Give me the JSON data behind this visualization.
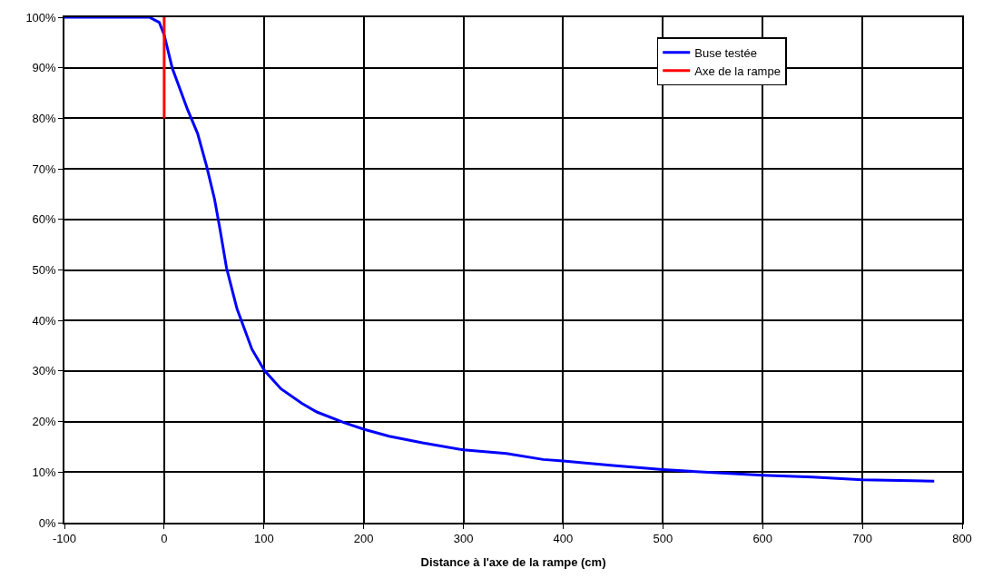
{
  "chart_data": {
    "type": "line",
    "xlabel": "Distance à l'axe de la rampe (cm)",
    "xlim": [
      -100,
      800
    ],
    "xticks": [
      -100,
      0,
      100,
      200,
      300,
      400,
      500,
      600,
      700,
      800
    ],
    "ylim": [
      0,
      100
    ],
    "yticks": [
      {
        "value": 0,
        "label": "0%"
      },
      {
        "value": 10,
        "label": "10%"
      },
      {
        "value": 20,
        "label": "20%"
      },
      {
        "value": 30,
        "label": "30%"
      },
      {
        "value": 40,
        "label": "40%"
      },
      {
        "value": 50,
        "label": "50%"
      },
      {
        "value": 60,
        "label": "60%"
      },
      {
        "value": 70,
        "label": "70%"
      },
      {
        "value": 80,
        "label": "80%"
      },
      {
        "value": 90,
        "label": "90%"
      },
      {
        "value": 100,
        "label": "100%"
      }
    ],
    "grid": true,
    "legend": "top right",
    "marker": "none",
    "line_style": "solid",
    "series": [
      {
        "name": "Buse testée",
        "color": "#0000ff",
        "x": [
          -100,
          -15,
          -5,
          0,
          8,
          23.5,
          33.5,
          42.6,
          50.5,
          56,
          62.5,
          73,
          88,
          100.5,
          117,
          138,
          153,
          180,
          200,
          225.5,
          259,
          300,
          343,
          380,
          400,
          450,
          500,
          550,
          600,
          650,
          700,
          750,
          772
        ],
        "values": [
          100,
          100,
          99,
          96.5,
          90,
          81.7,
          77,
          70.5,
          64,
          58,
          50.4,
          42.3,
          34.3,
          30.1,
          26.5,
          23.6,
          21.9,
          19.8,
          18.5,
          17.1,
          15.8,
          14.4,
          13.7,
          12.5,
          12.2,
          11.3,
          10.5,
          9.9,
          9.4,
          9.0,
          8.5,
          8.3,
          8.2
        ]
      },
      {
        "name": "Axe de la rampe",
        "color": "#ff0000",
        "x": [
          0,
          0
        ],
        "values": [
          80,
          100
        ]
      }
    ]
  }
}
